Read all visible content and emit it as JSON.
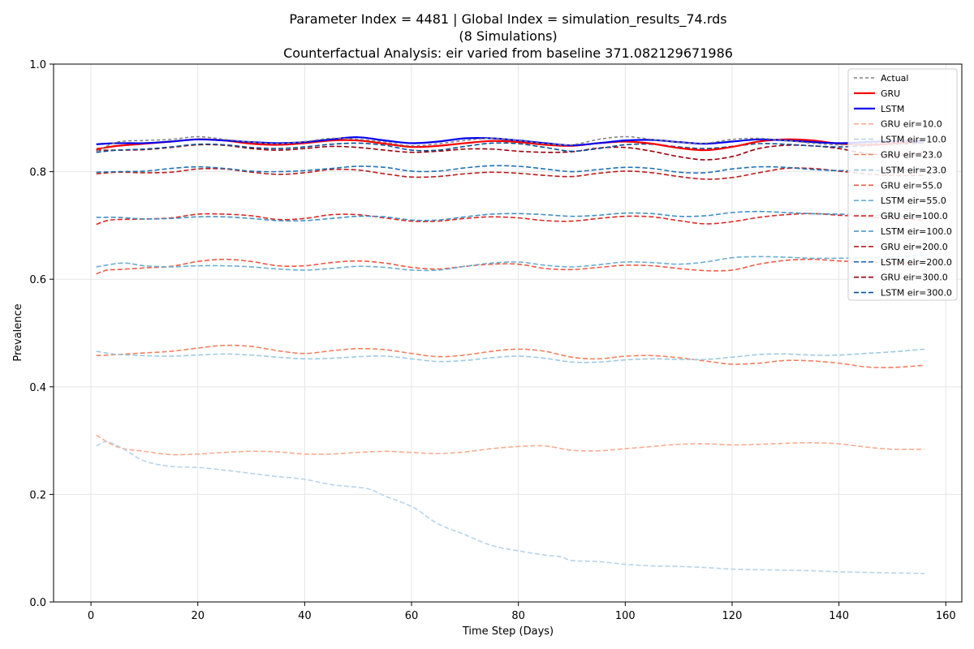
{
  "chart_data": {
    "type": "line",
    "title_lines": [
      "Parameter Index = 4481 | Global Index = simulation_results_74.rds",
      "(8 Simulations)",
      "Counterfactual Analysis: eir varied from baseline 371.082129671986"
    ],
    "xlabel": "Time Step (Days)",
    "ylabel": "Prevalence",
    "xlim": [
      -7,
      163
    ],
    "ylim": [
      0.0,
      1.0
    ],
    "xticks": [
      0,
      20,
      40,
      60,
      80,
      100,
      120,
      140,
      160
    ],
    "yticks": [
      0.0,
      0.2,
      0.4,
      0.6,
      0.8,
      1.0
    ],
    "xtick_labels": [
      "0",
      "20",
      "40",
      "60",
      "80",
      "100",
      "120",
      "140",
      "160"
    ],
    "ytick_labels": [
      "0.0",
      "0.2",
      "0.4",
      "0.6",
      "0.8",
      "1.0"
    ],
    "grid": true,
    "legend_position": "top-right",
    "series": [
      {
        "name": "Actual",
        "color": "#808080",
        "style": "dashed",
        "width": 1.5,
        "x": [
          1,
          5,
          10,
          15,
          20,
          25,
          30,
          35,
          40,
          45,
          50,
          55,
          60,
          65,
          70,
          75,
          80,
          85,
          90,
          95,
          100,
          105,
          110,
          115,
          120,
          125,
          130,
          135,
          140,
          145,
          150,
          156
        ],
        "y": [
          0.838,
          0.855,
          0.858,
          0.86,
          0.865,
          0.86,
          0.855,
          0.852,
          0.856,
          0.862,
          0.86,
          0.855,
          0.848,
          0.852,
          0.858,
          0.862,
          0.858,
          0.852,
          0.85,
          0.86,
          0.865,
          0.86,
          0.855,
          0.853,
          0.86,
          0.862,
          0.858,
          0.853,
          0.85,
          0.852,
          0.855,
          0.86
        ]
      },
      {
        "name": "GRU",
        "color": "#ff0000",
        "style": "solid",
        "width": 2.2,
        "x": [
          1,
          5,
          10,
          15,
          20,
          25,
          30,
          35,
          40,
          45,
          50,
          55,
          60,
          65,
          70,
          75,
          80,
          85,
          90,
          95,
          100,
          105,
          110,
          115,
          120,
          125,
          130,
          135,
          140,
          145,
          150,
          156
        ],
        "y": [
          0.842,
          0.848,
          0.852,
          0.856,
          0.86,
          0.858,
          0.852,
          0.85,
          0.853,
          0.858,
          0.858,
          0.852,
          0.846,
          0.848,
          0.853,
          0.857,
          0.855,
          0.85,
          0.848,
          0.853,
          0.856,
          0.852,
          0.844,
          0.84,
          0.846,
          0.856,
          0.86,
          0.858,
          0.852,
          0.85,
          0.852,
          0.857
        ]
      },
      {
        "name": "LSTM",
        "color": "#0000ee",
        "style": "solid",
        "width": 2.2,
        "x": [
          1,
          5,
          10,
          15,
          20,
          25,
          30,
          35,
          40,
          45,
          50,
          55,
          60,
          65,
          70,
          75,
          80,
          85,
          90,
          95,
          100,
          105,
          110,
          115,
          120,
          125,
          130,
          135,
          140,
          145,
          150,
          156
        ],
        "y": [
          0.851,
          0.853,
          0.853,
          0.856,
          0.86,
          0.858,
          0.855,
          0.853,
          0.855,
          0.86,
          0.864,
          0.858,
          0.853,
          0.856,
          0.862,
          0.862,
          0.858,
          0.853,
          0.849,
          0.853,
          0.858,
          0.859,
          0.855,
          0.852,
          0.856,
          0.86,
          0.858,
          0.855,
          0.853,
          0.855,
          0.857,
          0.857
        ]
      },
      {
        "name": "GRU eir=10.0",
        "color": "#fcab8f",
        "style": "dashed",
        "width": 1.6,
        "x": [
          1,
          5,
          10,
          15,
          20,
          25,
          30,
          35,
          40,
          45,
          50,
          55,
          60,
          65,
          70,
          75,
          80,
          85,
          90,
          95,
          100,
          105,
          110,
          115,
          120,
          125,
          130,
          135,
          140,
          145,
          150,
          156
        ],
        "y": [
          0.31,
          0.288,
          0.28,
          0.274,
          0.275,
          0.278,
          0.28,
          0.279,
          0.275,
          0.275,
          0.278,
          0.28,
          0.278,
          0.276,
          0.279,
          0.285,
          0.289,
          0.29,
          0.282,
          0.281,
          0.285,
          0.289,
          0.293,
          0.294,
          0.292,
          0.293,
          0.295,
          0.296,
          0.294,
          0.288,
          0.284,
          0.284
        ]
      },
      {
        "name": "LSTM eir=10.0",
        "color": "#b8d4ea",
        "style": "dashed",
        "width": 1.6,
        "x": [
          1,
          3,
          6,
          10,
          15,
          20,
          25,
          30,
          35,
          40,
          45,
          48,
          52,
          55,
          58,
          61,
          65,
          70,
          75,
          80,
          85,
          88,
          90,
          95,
          100,
          105,
          110,
          115,
          120,
          125,
          130,
          135,
          140,
          145,
          150,
          156
        ],
        "y": [
          0.29,
          0.298,
          0.285,
          0.262,
          0.252,
          0.25,
          0.245,
          0.239,
          0.233,
          0.228,
          0.218,
          0.215,
          0.21,
          0.197,
          0.186,
          0.172,
          0.145,
          0.125,
          0.105,
          0.095,
          0.087,
          0.084,
          0.077,
          0.075,
          0.07,
          0.067,
          0.066,
          0.064,
          0.061,
          0.06,
          0.059,
          0.058,
          0.056,
          0.055,
          0.054,
          0.053
        ]
      },
      {
        "name": "GRU eir=23.0",
        "color": "#f4805f",
        "style": "dashed",
        "width": 1.6,
        "x": [
          1,
          5,
          10,
          15,
          20,
          25,
          30,
          35,
          40,
          45,
          50,
          55,
          60,
          65,
          70,
          75,
          80,
          85,
          90,
          95,
          100,
          105,
          110,
          115,
          120,
          125,
          130,
          135,
          140,
          145,
          150,
          156
        ],
        "y": [
          0.458,
          0.46,
          0.463,
          0.466,
          0.472,
          0.477,
          0.475,
          0.467,
          0.462,
          0.467,
          0.471,
          0.469,
          0.462,
          0.456,
          0.459,
          0.466,
          0.47,
          0.466,
          0.455,
          0.452,
          0.457,
          0.458,
          0.454,
          0.448,
          0.442,
          0.444,
          0.449,
          0.448,
          0.444,
          0.437,
          0.436,
          0.44
        ]
      },
      {
        "name": "LSTM eir=23.0",
        "color": "#9ecae1",
        "style": "dashed",
        "width": 1.6,
        "x": [
          1,
          5,
          10,
          15,
          20,
          25,
          30,
          35,
          40,
          45,
          50,
          55,
          60,
          65,
          70,
          75,
          80,
          85,
          90,
          95,
          100,
          105,
          110,
          115,
          120,
          125,
          130,
          135,
          140,
          145,
          150,
          156
        ],
        "y": [
          0.466,
          0.46,
          0.458,
          0.457,
          0.459,
          0.461,
          0.459,
          0.455,
          0.452,
          0.453,
          0.456,
          0.457,
          0.452,
          0.447,
          0.449,
          0.454,
          0.457,
          0.453,
          0.446,
          0.446,
          0.45,
          0.452,
          0.451,
          0.451,
          0.455,
          0.46,
          0.461,
          0.459,
          0.459,
          0.462,
          0.465,
          0.47
        ]
      },
      {
        "name": "GRU eir=55.0",
        "color": "#f05a45",
        "style": "dashed",
        "width": 1.6,
        "x": [
          1,
          3,
          5,
          10,
          15,
          20,
          25,
          30,
          35,
          40,
          45,
          50,
          55,
          60,
          65,
          70,
          75,
          80,
          85,
          90,
          95,
          100,
          105,
          110,
          115,
          120,
          125,
          130,
          135,
          140,
          145,
          150,
          156
        ],
        "y": [
          0.61,
          0.617,
          0.618,
          0.621,
          0.624,
          0.633,
          0.637,
          0.633,
          0.625,
          0.625,
          0.631,
          0.634,
          0.63,
          0.622,
          0.619,
          0.624,
          0.628,
          0.628,
          0.62,
          0.618,
          0.622,
          0.626,
          0.625,
          0.62,
          0.616,
          0.617,
          0.628,
          0.635,
          0.637,
          0.634,
          0.632,
          0.63,
          0.628
        ]
      },
      {
        "name": "LSTM eir=55.0",
        "color": "#6baed6",
        "style": "dashed",
        "width": 1.6,
        "x": [
          1,
          6,
          10,
          15,
          20,
          25,
          30,
          35,
          40,
          45,
          50,
          55,
          60,
          65,
          70,
          75,
          80,
          85,
          90,
          95,
          100,
          105,
          110,
          115,
          120,
          125,
          130,
          135,
          140,
          145,
          150,
          156
        ],
        "y": [
          0.623,
          0.63,
          0.625,
          0.623,
          0.625,
          0.625,
          0.623,
          0.619,
          0.617,
          0.62,
          0.624,
          0.622,
          0.617,
          0.617,
          0.624,
          0.63,
          0.632,
          0.626,
          0.623,
          0.627,
          0.632,
          0.631,
          0.628,
          0.632,
          0.64,
          0.642,
          0.641,
          0.639,
          0.639,
          0.64,
          0.641,
          0.645
        ]
      },
      {
        "name": "GRU eir=100.0",
        "color": "#dc2a25",
        "style": "dashed",
        "width": 1.6,
        "x": [
          1,
          3,
          5,
          10,
          15,
          20,
          25,
          30,
          35,
          40,
          45,
          50,
          55,
          60,
          65,
          70,
          75,
          80,
          85,
          90,
          95,
          100,
          105,
          110,
          115,
          120,
          125,
          130,
          135,
          140,
          145,
          150,
          156
        ],
        "y": [
          0.702,
          0.709,
          0.711,
          0.712,
          0.714,
          0.721,
          0.721,
          0.718,
          0.711,
          0.713,
          0.72,
          0.72,
          0.714,
          0.708,
          0.708,
          0.713,
          0.716,
          0.714,
          0.709,
          0.708,
          0.713,
          0.717,
          0.716,
          0.709,
          0.703,
          0.707,
          0.715,
          0.72,
          0.722,
          0.719,
          0.716,
          0.713,
          0.71
        ]
      },
      {
        "name": "LSTM eir=100.0",
        "color": "#4292c6",
        "style": "dashed",
        "width": 1.6,
        "x": [
          1,
          5,
          10,
          15,
          20,
          25,
          30,
          35,
          40,
          45,
          50,
          55,
          60,
          65,
          70,
          75,
          80,
          85,
          90,
          95,
          100,
          105,
          110,
          115,
          120,
          125,
          130,
          135,
          140,
          145,
          150,
          156
        ],
        "y": [
          0.715,
          0.715,
          0.712,
          0.713,
          0.716,
          0.716,
          0.713,
          0.709,
          0.709,
          0.713,
          0.717,
          0.716,
          0.71,
          0.71,
          0.716,
          0.721,
          0.722,
          0.72,
          0.717,
          0.719,
          0.723,
          0.722,
          0.717,
          0.718,
          0.724,
          0.726,
          0.724,
          0.722,
          0.721,
          0.72,
          0.718,
          0.717
        ]
      },
      {
        "name": "GRU eir=200.0",
        "color": "#bc1c1c",
        "style": "dashed",
        "width": 1.6,
        "x": [
          1,
          5,
          10,
          15,
          20,
          25,
          30,
          35,
          40,
          45,
          50,
          55,
          60,
          65,
          70,
          75,
          80,
          85,
          90,
          95,
          100,
          105,
          110,
          115,
          120,
          125,
          130,
          135,
          140,
          145,
          150,
          156
        ],
        "y": [
          0.796,
          0.799,
          0.798,
          0.799,
          0.805,
          0.805,
          0.799,
          0.795,
          0.798,
          0.804,
          0.803,
          0.796,
          0.79,
          0.791,
          0.796,
          0.799,
          0.797,
          0.793,
          0.791,
          0.797,
          0.801,
          0.798,
          0.791,
          0.786,
          0.789,
          0.798,
          0.806,
          0.806,
          0.801,
          0.796,
          0.793,
          0.793
        ]
      },
      {
        "name": "LSTM eir=200.0",
        "color": "#2171b5",
        "style": "dashed",
        "width": 1.6,
        "x": [
          1,
          5,
          10,
          15,
          20,
          25,
          30,
          35,
          40,
          45,
          50,
          55,
          60,
          65,
          70,
          75,
          80,
          85,
          90,
          95,
          100,
          105,
          110,
          115,
          120,
          125,
          130,
          135,
          140,
          145,
          150,
          156
        ],
        "y": [
          0.799,
          0.8,
          0.801,
          0.806,
          0.809,
          0.806,
          0.801,
          0.8,
          0.802,
          0.806,
          0.81,
          0.808,
          0.801,
          0.801,
          0.807,
          0.811,
          0.81,
          0.805,
          0.8,
          0.804,
          0.808,
          0.806,
          0.799,
          0.798,
          0.805,
          0.809,
          0.808,
          0.804,
          0.802,
          0.802,
          0.803,
          0.805
        ]
      },
      {
        "name": "GRU eir=300.0",
        "color": "#99000d",
        "style": "dashed",
        "width": 1.6,
        "x": [
          1,
          5,
          10,
          15,
          20,
          25,
          30,
          35,
          40,
          45,
          50,
          55,
          60,
          65,
          70,
          75,
          80,
          85,
          90,
          95,
          100,
          105,
          110,
          115,
          120,
          125,
          130,
          135,
          140,
          145,
          150,
          156
        ],
        "y": [
          0.84,
          0.84,
          0.841,
          0.845,
          0.85,
          0.849,
          0.843,
          0.84,
          0.843,
          0.847,
          0.845,
          0.84,
          0.836,
          0.838,
          0.842,
          0.842,
          0.838,
          0.836,
          0.837,
          0.844,
          0.845,
          0.838,
          0.828,
          0.822,
          0.828,
          0.843,
          0.849,
          0.848,
          0.843,
          0.834,
          0.831,
          0.836
        ]
      },
      {
        "name": "LSTM eir=300.0",
        "color": "#08519c",
        "style": "dashed",
        "width": 1.6,
        "x": [
          1,
          5,
          10,
          15,
          20,
          25,
          30,
          35,
          40,
          45,
          50,
          55,
          60,
          65,
          70,
          75,
          80,
          85,
          90,
          95,
          100,
          105,
          110,
          115,
          120,
          125,
          130,
          135,
          140,
          145,
          150,
          156
        ],
        "y": [
          0.836,
          0.84,
          0.842,
          0.846,
          0.851,
          0.85,
          0.845,
          0.843,
          0.846,
          0.851,
          0.853,
          0.849,
          0.84,
          0.84,
          0.847,
          0.853,
          0.852,
          0.845,
          0.838,
          0.843,
          0.85,
          0.851,
          0.846,
          0.843,
          0.847,
          0.852,
          0.851,
          0.848,
          0.846,
          0.848,
          0.851,
          0.853
        ]
      }
    ]
  }
}
